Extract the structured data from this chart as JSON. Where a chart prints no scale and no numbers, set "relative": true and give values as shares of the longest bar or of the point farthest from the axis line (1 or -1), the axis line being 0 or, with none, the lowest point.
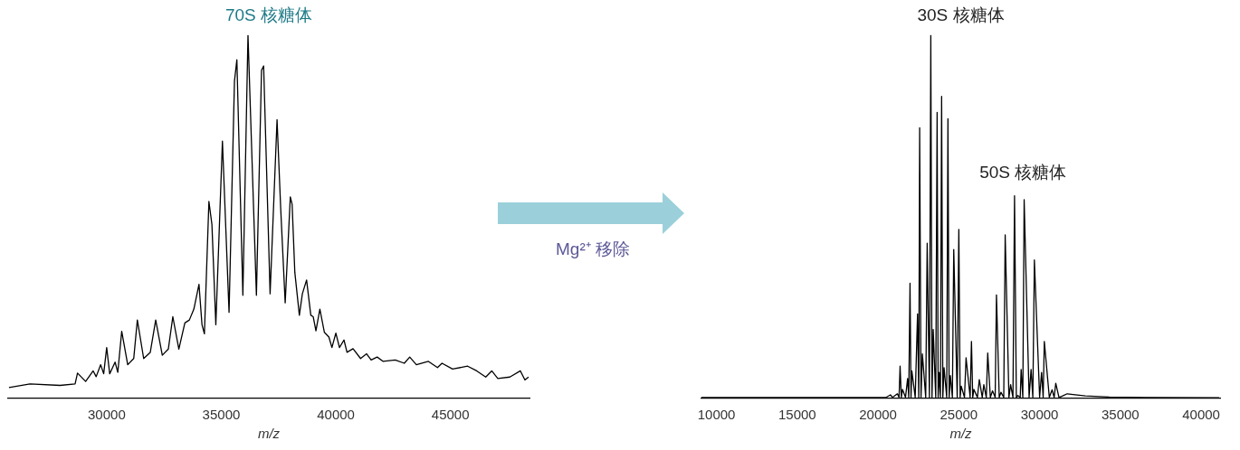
{
  "chart_data": [
    {
      "type": "line",
      "title": "70S 核糖体",
      "xlabel": "m/z",
      "relative": true,
      "xlim": [
        25700,
        48450
      ],
      "xticks": [
        30000,
        35000,
        40000,
        45000
      ],
      "series": [
        {
          "color": "#000000",
          "x": [
            25736,
            26654,
            27966,
            28622,
            28727,
            29082,
            29410,
            29541,
            29738,
            29869,
            30000,
            30131,
            30367,
            30485,
            30656,
            30918,
            31180,
            31338,
            31614,
            31902,
            32139,
            32427,
            32690,
            32886,
            33149,
            33411,
            33608,
            33805,
            34028,
            34159,
            34264,
            34461,
            34592,
            34763,
            35051,
            35340,
            35576,
            35681,
            35943,
            36166,
            36534,
            36757,
            36849,
            37131,
            37434,
            37592,
            37789,
            38013,
            38092,
            38210,
            38408,
            38539,
            38723,
            38908,
            39013,
            39131,
            39303,
            39500,
            39697,
            39829,
            40000,
            40158,
            40355,
            40487,
            40750,
            41079,
            41342,
            41540,
            41803,
            42066,
            42592,
            42987,
            43224,
            43514,
            44040,
            44435,
            44633,
            45093,
            45751,
            46146,
            46541,
            46804,
            47067,
            47593,
            48053,
            48251,
            48409
          ],
          "values": [
            0.03,
            0.04,
            0.036,
            0.04,
            0.07,
            0.047,
            0.076,
            0.06,
            0.093,
            0.068,
            0.14,
            0.068,
            0.1,
            0.072,
            0.185,
            0.093,
            0.11,
            0.216,
            0.11,
            0.127,
            0.216,
            0.119,
            0.136,
            0.225,
            0.136,
            0.208,
            0.216,
            0.246,
            0.314,
            0.203,
            0.178,
            0.542,
            0.479,
            0.203,
            0.708,
            0.237,
            0.873,
            0.932,
            0.284,
            1.0,
            0.284,
            0.903,
            0.915,
            0.288,
            0.767,
            0.525,
            0.263,
            0.555,
            0.534,
            0.347,
            0.229,
            0.288,
            0.326,
            0.229,
            0.225,
            0.186,
            0.246,
            0.182,
            0.169,
            0.14,
            0.18,
            0.14,
            0.161,
            0.127,
            0.137,
            0.11,
            0.123,
            0.106,
            0.114,
            0.102,
            0.106,
            0.097,
            0.114,
            0.093,
            0.102,
            0.085,
            0.097,
            0.081,
            0.089,
            0.076,
            0.059,
            0.076,
            0.055,
            0.059,
            0.076,
            0.051,
            0.059
          ]
        }
      ]
    },
    {
      "type": "other",
      "annotations": [
        "Mg²⁺ 移除"
      ]
    },
    {
      "type": "line",
      "title": "30S 核糖体",
      "xlabel": "m/z",
      "relative": true,
      "xlim": [
        9070,
        41170
      ],
      "xticks": [
        10000,
        15000,
        20000,
        25000,
        30000,
        35000,
        40000
      ],
      "annotations": [
        "50S 核糖体"
      ],
      "series": [
        {
          "color": "#000000",
          "x": [
            9070,
            20500,
            20768,
            20900,
            21196,
            21300,
            21364,
            21440,
            21513,
            21700,
            21830,
            21900,
            21979,
            22040,
            22091,
            22300,
            22445,
            22520,
            22575,
            22660,
            22743,
            22950,
            23041,
            23180,
            23265,
            23340,
            23414,
            23570,
            23656,
            23720,
            23786,
            23860,
            23935,
            24010,
            24084,
            24250,
            24326,
            24400,
            24475,
            24600,
            24685,
            24900,
            25000,
            25080,
            25149,
            25350,
            25447,
            25700,
            25782,
            25860,
            25931,
            26150,
            26267,
            26450,
            26546,
            26700,
            26788,
            26950,
            27087,
            27250,
            27329,
            27500,
            27608,
            27780,
            27869,
            28100,
            28205,
            28350,
            28447,
            28560,
            28652,
            28800,
            28856,
            28960,
            29043,
            29350,
            29471,
            29580,
            29676,
            30000,
            30123,
            30220,
            30291,
            30600,
            30775,
            30900,
            30999,
            31200,
            31427,
            31707,
            32825,
            34315,
            36551,
            41115
          ],
          "values": [
            0.003,
            0.003,
            0.01,
            0.003,
            0.013,
            0.003,
            0.089,
            0.003,
            0.025,
            0.003,
            0.055,
            0.003,
            0.317,
            0.003,
            0.076,
            0.003,
            0.233,
            0.003,
            0.745,
            0.003,
            0.123,
            0.003,
            0.427,
            0.003,
            1.0,
            0.003,
            0.19,
            0.003,
            0.787,
            0.003,
            0.072,
            0.003,
            0.831,
            0.003,
            0.085,
            0.003,
            0.77,
            0.003,
            0.063,
            0.003,
            0.41,
            0.003,
            0.465,
            0.003,
            0.034,
            0.003,
            0.112,
            0.003,
            0.157,
            0.003,
            0.025,
            0.003,
            0.052,
            0.003,
            0.038,
            0.003,
            0.125,
            0.003,
            0.021,
            0.003,
            0.285,
            0.003,
            0.017,
            0.003,
            0.45,
            0.003,
            0.038,
            0.003,
            0.558,
            0.003,
            0.008,
            0.003,
            0.08,
            0.003,
            0.547,
            0.003,
            0.08,
            0.003,
            0.381,
            0.003,
            0.072,
            0.003,
            0.157,
            0.003,
            0.024,
            0.003,
            0.042,
            0.003,
            0.007,
            0.013,
            0.007,
            0.004,
            0.003,
            0.002
          ]
        }
      ]
    }
  ]
}
